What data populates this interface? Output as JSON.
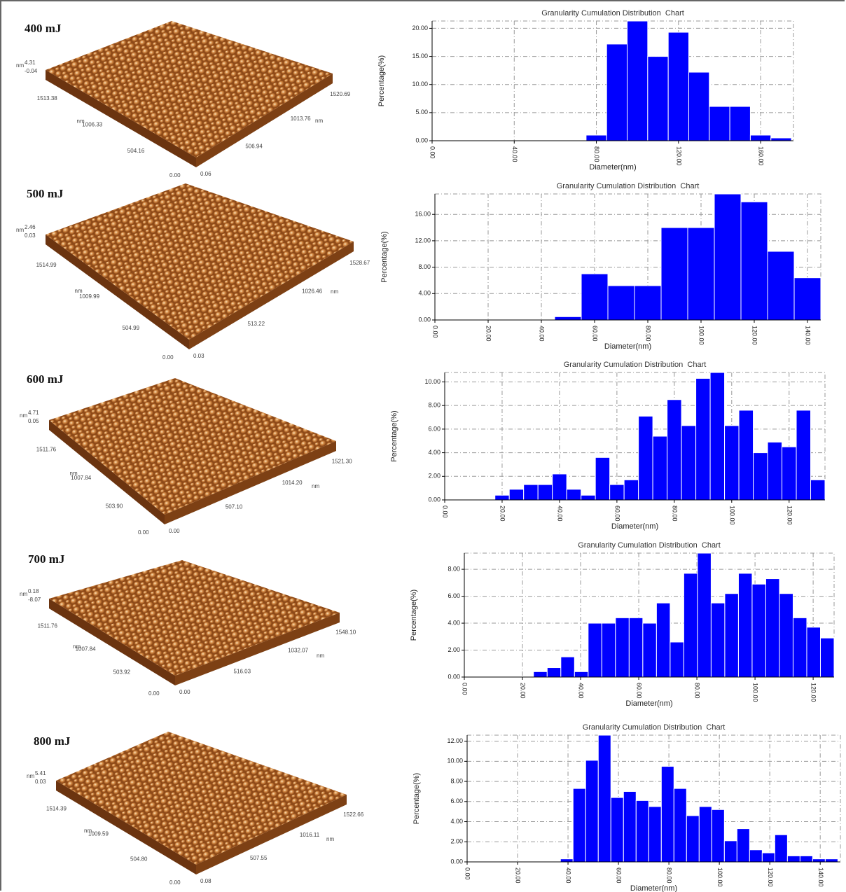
{
  "afm_images": [
    {
      "label": "400 mJ",
      "z_unit": "nm",
      "z_ticks": [
        "4.31",
        "-0.04"
      ],
      "y_ticks": [
        "1513.38",
        "1006.33",
        "504.16",
        "0.00"
      ],
      "y_unit": "nm",
      "x_ticks": [
        "0.06",
        "506.94",
        "1013.76",
        "1520.69"
      ],
      "x_unit": "nm"
    },
    {
      "label": "500 mJ",
      "z_unit": "nm",
      "z_ticks": [
        "2.46",
        "0.03"
      ],
      "y_ticks": [
        "1514.99",
        "1009.99",
        "504.99",
        "0.00"
      ],
      "y_unit": "nm",
      "x_ticks": [
        "0.03",
        "513.22",
        "1026.46",
        "1528.67"
      ],
      "x_unit": "nm"
    },
    {
      "label": "600 mJ",
      "z_unit": "nm",
      "z_ticks": [
        "4.71",
        "0.05"
      ],
      "y_ticks": [
        "1511.76",
        "1007.84",
        "503.90",
        "0.00"
      ],
      "y_unit": "nm",
      "x_ticks": [
        "0.00",
        "507.10",
        "1014.20",
        "1521.30"
      ],
      "x_unit": "nm"
    },
    {
      "label": "700 mJ",
      "z_unit": "nm",
      "z_ticks": [
        "0.18",
        "-8.07"
      ],
      "y_ticks": [
        "1511.76",
        "1007.84",
        "503.92",
        "0.00"
      ],
      "y_unit": "nm",
      "x_ticks": [
        "0.00",
        "516.03",
        "1032.07",
        "1548.10"
      ],
      "x_unit": "nm"
    },
    {
      "label": "800 mJ",
      "z_unit": "nm",
      "z_ticks": [
        "5.41",
        "0.03"
      ],
      "y_ticks": [
        "1514.39",
        "1009.59",
        "504.80",
        "0.00"
      ],
      "y_unit": "nm",
      "x_ticks": [
        "0.08",
        "507.55",
        "1016.11",
        "1522.66"
      ],
      "x_unit": "nm"
    }
  ],
  "chart_data": [
    {
      "type": "histogram",
      "title": "Granularity Cumulation Distribution  Chart",
      "x_label": "Diameter(nm)",
      "y_label": "Percentage(%)",
      "color": "#0000ff",
      "grid": true,
      "bins": [
        75,
        85,
        95,
        105,
        115,
        125,
        135,
        145,
        155,
        165,
        175
      ],
      "values": [
        1.0,
        17.2,
        21.3,
        15.0,
        19.3,
        12.2,
        6.1,
        6.1,
        1.0,
        0.5
      ],
      "xlim": [
        0,
        176
      ],
      "ylim": [
        0,
        21.3
      ],
      "xticks": [
        {
          "value": 0,
          "label": "0.00"
        },
        {
          "value": 40,
          "label": "40.00"
        },
        {
          "value": 80,
          "label": "80.00"
        },
        {
          "value": 120,
          "label": "120.00"
        },
        {
          "value": 160,
          "label": "160.00"
        }
      ],
      "yticks": [
        {
          "value": 0,
          "label": "0.00"
        },
        {
          "value": 5,
          "label": "5.00"
        },
        {
          "value": 10,
          "label": "10.00"
        },
        {
          "value": 15,
          "label": "15.00"
        },
        {
          "value": 20,
          "label": "20.00"
        }
      ]
    },
    {
      "type": "histogram",
      "title": "Granularity Cumulation Distribution  Chart",
      "x_label": "Diameter(nm)",
      "y_label": "Percentage(%)",
      "color": "#0000ff",
      "grid": true,
      "bins": [
        45,
        55,
        65,
        75,
        85,
        95,
        105,
        115,
        125,
        135,
        145
      ],
      "values": [
        0.5,
        7.0,
        5.2,
        5.2,
        14.0,
        14.0,
        19.1,
        17.9,
        10.4,
        6.4
      ],
      "xlim": [
        0,
        145
      ],
      "ylim": [
        0,
        19.1
      ],
      "xticks": [
        {
          "value": 0,
          "label": "0.00"
        },
        {
          "value": 20,
          "label": "20.00"
        },
        {
          "value": 40,
          "label": "40.00"
        },
        {
          "value": 60,
          "label": "60.00"
        },
        {
          "value": 80,
          "label": "80.00"
        },
        {
          "value": 100,
          "label": "100.00"
        },
        {
          "value": 120,
          "label": "120.00"
        },
        {
          "value": 140,
          "label": "140.00"
        }
      ],
      "yticks": [
        {
          "value": 0,
          "label": "0.00"
        },
        {
          "value": 4,
          "label": "4.00"
        },
        {
          "value": 8,
          "label": "8.00"
        },
        {
          "value": 12,
          "label": "12.00"
        },
        {
          "value": 16,
          "label": "16.00"
        }
      ]
    },
    {
      "type": "histogram",
      "title": "Granularity Cumulation Distribution  Chart",
      "x_label": "Diameter(nm)",
      "y_label": "Percentage(%)",
      "color": "#0000ff",
      "grid": true,
      "bins": [
        17.5,
        22.5,
        27.5,
        32.5,
        37.5,
        42.5,
        47.5,
        52.5,
        57.5,
        62.5,
        67.5,
        72.5,
        77.5,
        82.5,
        87.5,
        92.5,
        97.5,
        102.5,
        107.5,
        112.5,
        117.5,
        122.5,
        127.5,
        132.5
      ],
      "values": [
        0.4,
        0.9,
        1.3,
        1.3,
        2.2,
        0.9,
        0.4,
        3.6,
        1.3,
        1.7,
        7.1,
        5.4,
        8.5,
        6.3,
        10.3,
        10.8,
        6.3,
        7.6,
        4.0,
        4.9,
        4.5,
        7.6,
        1.7
      ],
      "xlim": [
        0,
        132.5
      ],
      "ylim": [
        0,
        10.8
      ],
      "xticks": [
        {
          "value": 0,
          "label": "0.00"
        },
        {
          "value": 20,
          "label": "20.00"
        },
        {
          "value": 40,
          "label": "40.00"
        },
        {
          "value": 60,
          "label": "60.00"
        },
        {
          "value": 80,
          "label": "80.00"
        },
        {
          "value": 100,
          "label": "100.00"
        },
        {
          "value": 120,
          "label": "120.00"
        }
      ],
      "yticks": [
        {
          "value": 0,
          "label": "0.00"
        },
        {
          "value": 2,
          "label": "2.00"
        },
        {
          "value": 4,
          "label": "4.00"
        },
        {
          "value": 6,
          "label": "6.00"
        },
        {
          "value": 8,
          "label": "8.00"
        },
        {
          "value": 10,
          "label": "10.00"
        }
      ]
    },
    {
      "type": "histogram",
      "title": "Granularity Cumulation Distribution  Chart",
      "x_label": "Diameter(nm)",
      "y_label": "Percentage(%)",
      "color": "#0000ff",
      "grid": true,
      "bins": [
        23.8,
        28.5,
        33.2,
        37.9,
        42.6,
        47.3,
        52.0,
        56.7,
        61.4,
        66.1,
        70.8,
        75.5,
        80.2,
        84.9,
        89.6,
        94.3,
        99.0,
        103.7,
        108.4,
        113.1,
        117.8,
        122.5,
        127.2
      ],
      "values": [
        0.4,
        0.7,
        1.5,
        0.4,
        4.0,
        4.0,
        4.4,
        4.4,
        4.0,
        5.5,
        2.6,
        7.7,
        9.2,
        5.5,
        6.2,
        7.7,
        6.9,
        7.3,
        6.2,
        4.4,
        3.7,
        2.9
      ],
      "xlim": [
        0,
        127.2
      ],
      "ylim": [
        0,
        9.2
      ],
      "xticks": [
        {
          "value": 0,
          "label": "0.00"
        },
        {
          "value": 20,
          "label": "20.00"
        },
        {
          "value": 40,
          "label": "40.00"
        },
        {
          "value": 60,
          "label": "60.00"
        },
        {
          "value": 80,
          "label": "80.00"
        },
        {
          "value": 100,
          "label": "100.00"
        },
        {
          "value": 120,
          "label": "120.00"
        }
      ],
      "yticks": [
        {
          "value": 0,
          "label": "0.00"
        },
        {
          "value": 2,
          "label": "2.00"
        },
        {
          "value": 4,
          "label": "4.00"
        },
        {
          "value": 6,
          "label": "6.00"
        },
        {
          "value": 8,
          "label": "8.00"
        }
      ]
    },
    {
      "type": "histogram",
      "title": "Granularity Cumulation Distribution  Chart",
      "x_label": "Diameter(nm)",
      "y_label": "Percentage(%)",
      "color": "#0000ff",
      "grid": true,
      "bins": [
        37,
        42,
        47,
        52,
        57,
        62,
        67,
        72,
        77,
        82,
        87,
        92,
        97,
        102,
        107,
        112,
        117,
        122,
        127,
        132,
        137,
        142,
        147
      ],
      "values": [
        0.3,
        7.3,
        10.1,
        12.6,
        6.4,
        7.0,
        6.1,
        5.5,
        9.5,
        7.3,
        4.6,
        5.5,
        5.2,
        2.1,
        3.3,
        1.2,
        0.9,
        2.7,
        0.6,
        0.6,
        0.3,
        0.3
      ],
      "xlim": [
        0,
        148
      ],
      "ylim": [
        0,
        12.6
      ],
      "xticks": [
        {
          "value": 0,
          "label": "0.00"
        },
        {
          "value": 20,
          "label": "20.00"
        },
        {
          "value": 40,
          "label": "40.00"
        },
        {
          "value": 60,
          "label": "60.00"
        },
        {
          "value": 80,
          "label": "80.00"
        },
        {
          "value": 100,
          "label": "100.00"
        },
        {
          "value": 120,
          "label": "120.00"
        },
        {
          "value": 140,
          "label": "140.00"
        }
      ],
      "yticks": [
        {
          "value": 0,
          "label": "0.00"
        },
        {
          "value": 2,
          "label": "2.00"
        },
        {
          "value": 4,
          "label": "4.00"
        },
        {
          "value": 6,
          "label": "6.00"
        },
        {
          "value": 8,
          "label": "8.00"
        },
        {
          "value": 10,
          "label": "10.00"
        },
        {
          "value": 12,
          "label": "12.00"
        }
      ]
    }
  ]
}
